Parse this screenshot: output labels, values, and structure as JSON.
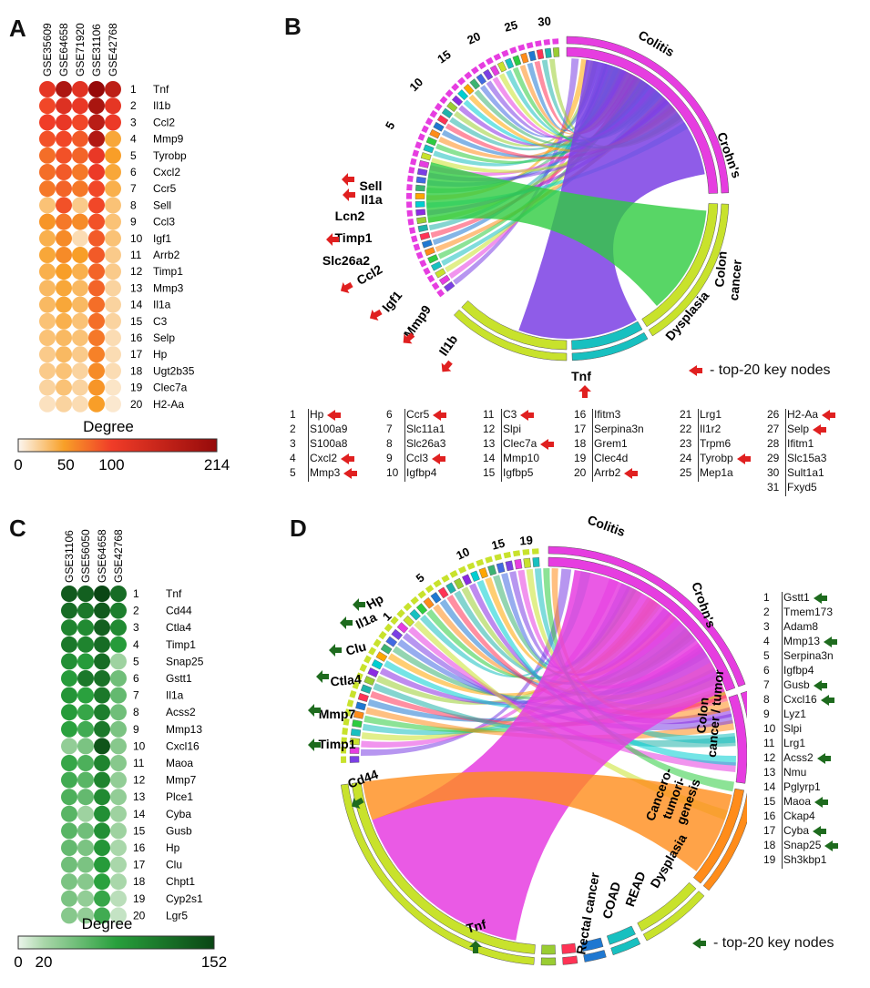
{
  "panels": {
    "a": "A",
    "b": "B",
    "c": "C",
    "d": "D"
  },
  "heatmap_a": {
    "datasets": [
      "GSE35609",
      "GSE64658",
      "GSE71920",
      "GSE31106",
      "GSE42768"
    ],
    "genes": [
      "Tnf",
      "Il1b",
      "Ccl2",
      "Mmp9",
      "Tyrobp",
      "Cxcl2",
      "Ccr5",
      "Sell",
      "Ccl3",
      "Igf1",
      "Arrb2",
      "Timp1",
      "Mmp3",
      "Il1a",
      "C3",
      "Selp",
      "Hp",
      "Ugt2b35",
      "Clec7a",
      "H2-Aa"
    ],
    "values": [
      [
        115,
        185,
        120,
        214,
        165
      ],
      [
        95,
        125,
        110,
        190,
        115
      ],
      [
        100,
        110,
        95,
        170,
        105
      ],
      [
        90,
        95,
        85,
        180,
        45
      ],
      [
        75,
        90,
        80,
        110,
        50
      ],
      [
        75,
        85,
        70,
        105,
        45
      ],
      [
        70,
        80,
        70,
        95,
        40
      ],
      [
        30,
        90,
        25,
        95,
        30
      ],
      [
        55,
        70,
        60,
        90,
        30
      ],
      [
        40,
        60,
        15,
        85,
        30
      ],
      [
        45,
        60,
        50,
        85,
        25
      ],
      [
        40,
        50,
        40,
        80,
        25
      ],
      [
        35,
        45,
        35,
        80,
        20
      ],
      [
        35,
        45,
        35,
        75,
        20
      ],
      [
        30,
        40,
        30,
        75,
        20
      ],
      [
        30,
        35,
        30,
        70,
        15
      ],
      [
        25,
        35,
        25,
        65,
        15
      ],
      [
        25,
        30,
        20,
        60,
        15
      ],
      [
        20,
        30,
        20,
        55,
        10
      ],
      [
        12,
        20,
        15,
        50,
        8
      ]
    ],
    "legend": {
      "title": "Degree",
      "ticks": [
        "0",
        "50",
        "100",
        "214"
      ],
      "max": 214
    }
  },
  "heatmap_c": {
    "datasets": [
      "GSE31106",
      "GSE56050",
      "GSE64658",
      "GSE42768"
    ],
    "genes": [
      "Tnf",
      "Cd44",
      "Ctla4",
      "Timp1",
      "Snap25",
      "Gstt1",
      "Il1a",
      "Acss2",
      "Mmp13",
      "Cxcl16",
      "Maoa",
      "Mmp7",
      "Plce1",
      "Cyba",
      "Gusb",
      "Hp",
      "Clu",
      "Chpt1",
      "Cyp2s1",
      "Lgr5"
    ],
    "values": [
      [
        135,
        130,
        152,
        120
      ],
      [
        120,
        110,
        135,
        105
      ],
      [
        100,
        95,
        130,
        95
      ],
      [
        110,
        100,
        120,
        80
      ],
      [
        90,
        80,
        120,
        25
      ],
      [
        80,
        110,
        115,
        45
      ],
      [
        85,
        75,
        110,
        50
      ],
      [
        80,
        70,
        105,
        45
      ],
      [
        75,
        65,
        110,
        40
      ],
      [
        30,
        40,
        140,
        35
      ],
      [
        70,
        60,
        100,
        35
      ],
      [
        65,
        55,
        100,
        30
      ],
      [
        60,
        50,
        95,
        30
      ],
      [
        55,
        25,
        90,
        25
      ],
      [
        55,
        45,
        90,
        25
      ],
      [
        50,
        40,
        85,
        20
      ],
      [
        45,
        40,
        80,
        20
      ],
      [
        40,
        35,
        75,
        20
      ],
      [
        40,
        30,
        70,
        15
      ],
      [
        35,
        30,
        65,
        12
      ]
    ],
    "legend": {
      "title": "Degree",
      "ticks": [
        "0",
        "20",
        "152"
      ],
      "max": 152
    }
  },
  "chord_b": {
    "categories": [
      "Colitis",
      "Crohn's",
      "Colon",
      "cancer",
      "Dysplasia",
      "Tnf"
    ],
    "numbers": [
      "5",
      "10",
      "15",
      "20",
      "25",
      "30"
    ],
    "genes": [
      "Sell",
      "Il1a",
      "Lcn2",
      "Timp1",
      "Slc26a2",
      "Ccl2",
      "Igf1",
      "Mmp9",
      "Il1b"
    ],
    "legend": "- top-20 key nodes",
    "list": [
      [
        "1",
        "Hp",
        true
      ],
      [
        "2",
        "S100a9",
        false
      ],
      [
        "3",
        "S100a8",
        false
      ],
      [
        "4",
        "Cxcl2",
        true
      ],
      [
        "5",
        "Mmp3",
        true
      ],
      [
        "6",
        "Ccr5",
        true
      ],
      [
        "7",
        "Slc11a1",
        false
      ],
      [
        "8",
        "Slc26a3",
        false
      ],
      [
        "9",
        "Ccl3",
        true
      ],
      [
        "10",
        "Igfbp4",
        false
      ],
      [
        "11",
        "C3",
        true
      ],
      [
        "12",
        "Slpi",
        false
      ],
      [
        "13",
        "Clec7a",
        true
      ],
      [
        "14",
        "Mmp10",
        false
      ],
      [
        "15",
        "Igfbp5",
        false
      ],
      [
        "16",
        "Ifitm3",
        false
      ],
      [
        "17",
        "Serpina3n",
        false
      ],
      [
        "18",
        "Grem1",
        false
      ],
      [
        "19",
        "Clec4d",
        false
      ],
      [
        "20",
        "Arrb2",
        true
      ],
      [
        "21",
        "Lrg1",
        false
      ],
      [
        "22",
        "Il1r2",
        false
      ],
      [
        "23",
        "Trpm6",
        false
      ],
      [
        "24",
        "Tyrobp",
        true
      ],
      [
        "25",
        "Mep1a",
        false
      ],
      [
        "26",
        "H2-Aa",
        true
      ],
      [
        "27",
        "Selp",
        true
      ],
      [
        "28",
        "Ifitm1",
        false
      ],
      [
        "29",
        "Slc15a3",
        false
      ],
      [
        "30",
        "Sult1a1",
        false
      ],
      [
        "31",
        "Fxyd5",
        false
      ]
    ]
  },
  "chord_d": {
    "categories": [
      "Colitis",
      "Crohn's",
      "Colon",
      "cancer / tumor",
      "Cancero-",
      "tumori-",
      "genesis",
      "Dysplasia",
      "READ",
      "COAD",
      "Rectal cancer",
      "Tnf"
    ],
    "numbers": [
      "1",
      "5",
      "10",
      "15",
      "19"
    ],
    "genes": [
      "Hp",
      "Il1a",
      "Clu",
      "Ctla4",
      "Mmp7",
      "Timp1",
      "Cd44"
    ],
    "legend": "- top-20 key nodes",
    "list": [
      [
        "1",
        "Gstt1",
        true
      ],
      [
        "2",
        "Tmem173",
        false
      ],
      [
        "3",
        "Adam8",
        false
      ],
      [
        "4",
        "Mmp13",
        true
      ],
      [
        "5",
        "Serpina3n",
        false
      ],
      [
        "6",
        "Igfbp4",
        false
      ],
      [
        "7",
        "Gusb",
        true
      ],
      [
        "8",
        "Cxcl16",
        true
      ],
      [
        "9",
        "Lyz1",
        false
      ],
      [
        "10",
        "Slpi",
        false
      ],
      [
        "11",
        "Lrg1",
        false
      ],
      [
        "12",
        "Acss2",
        true
      ],
      [
        "13",
        "Nmu",
        false
      ],
      [
        "14",
        "Pglyrp1",
        false
      ],
      [
        "15",
        "Maoa",
        true
      ],
      [
        "16",
        "Ckap4",
        false
      ],
      [
        "17",
        "Cyba",
        true
      ],
      [
        "18",
        "Snap25",
        true
      ],
      [
        "19",
        "Sh3kbp1",
        false
      ]
    ]
  },
  "colors": {
    "red": "#e02020",
    "green": "#1e6b1e",
    "violet": "#7b3fe4",
    "magenta": "#e63de0",
    "lime": "#c8e22c"
  }
}
